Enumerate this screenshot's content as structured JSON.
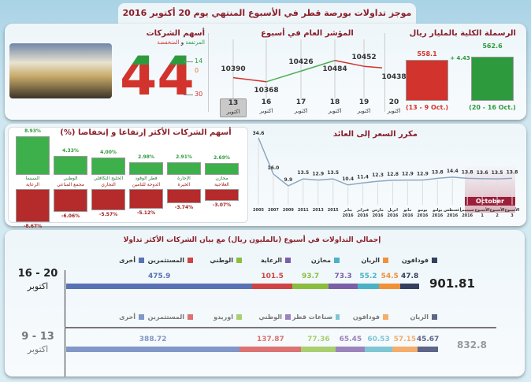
{
  "title": "موجز تداولات بورصة قطر في الأسبوع المنتهي يوم 20 أكتوبر 2016",
  "companies": {
    "title": "أسهم الشركات",
    "subtitle_up": "المرتفعة",
    "subtitle_and": " و ",
    "subtitle_down": "المنخفضة",
    "total": "44",
    "up": "14",
    "unchanged": "0",
    "down": "30"
  },
  "index": {
    "title": "المؤشر العام في أسبوع",
    "days": [
      {
        "day": "13",
        "month": "اكتوبر",
        "value": 10390
      },
      {
        "day": "16",
        "month": "اكتوبر",
        "value": 10368
      },
      {
        "day": "17",
        "month": "اكتوبر",
        "value": 10426
      },
      {
        "day": "18",
        "month": "اكتوبر",
        "value": 10484
      },
      {
        "day": "19",
        "month": "اكتوبر",
        "value": 10452
      },
      {
        "day": "20",
        "month": "اكتوبر",
        "value": 10438
      }
    ],
    "value_labels": [
      "10390",
      "10368",
      "10426",
      "10484",
      "10452",
      "10438"
    ]
  },
  "cap": {
    "title": "الرسملة الكلية بالمليار ريال",
    "prev_value": "558.1",
    "curr_value": "562.6",
    "change": "+ 4.43",
    "prev_label": "(13 - 9 Oct.)",
    "curr_label": "(20 - 16 Oct.)",
    "prev_num": 558.1,
    "curr_num": 562.6,
    "up_color": "#2e9a3e",
    "down_color": "#d2332c"
  },
  "movers": {
    "title": "أسهم الشركات الأكثر إرتفاعا و إنخفاضا (%)",
    "gainers": [
      {
        "name": "السينما",
        "pct": 8.93,
        "label": "8.93%"
      },
      {
        "name": "الوطني",
        "pct": 4.33,
        "label": "4.33%"
      },
      {
        "name": "الخليج التكافلي",
        "pct": 4.0,
        "label": "4.00%"
      },
      {
        "name": "قطر الوقود",
        "pct": 2.98,
        "label": "2.98%"
      },
      {
        "name": "الإجارة",
        "pct": 2.91,
        "label": "2.91%"
      },
      {
        "name": "مخازن",
        "pct": 2.69,
        "label": "2.69%"
      }
    ],
    "losers": [
      {
        "name": "الرعاية",
        "pct": -8.67,
        "label": "-8.67%"
      },
      {
        "name": "مجمع المناعي",
        "pct": -6.06,
        "label": "-6.06%"
      },
      {
        "name": "التجاري",
        "pct": -5.57,
        "label": "-5.57%"
      },
      {
        "name": "الدوحة للتأمين",
        "pct": -5.12,
        "label": "-5.12%"
      },
      {
        "name": "الخيرة",
        "pct": -3.74,
        "label": "-3.74%"
      },
      {
        "name": "العلاجية",
        "pct": -3.07,
        "label": "-3.07%"
      }
    ]
  },
  "chart_data": {
    "type": "line",
    "title": "مكرر السعر إلى العائد",
    "highlight_label": "October",
    "categories": [
      "2005",
      "2007",
      "2009",
      "2011",
      "2013",
      "2015",
      "يناير 2016",
      "فبراير 2016",
      "مارس 2016",
      "ابريل 2016",
      "مايو 2016",
      "يونيو 2016",
      "يوليو 2016",
      "أغسطس 2016",
      "سبتمبر 2016",
      "الأسبوع 1",
      "الأسبوع 2",
      "الأسبوع 3"
    ],
    "values": [
      34.6,
      16.0,
      9.9,
      13.5,
      12.9,
      13.5,
      10.4,
      11.4,
      12.3,
      12.8,
      12.9,
      12.9,
      13.8,
      14.4,
      13.8,
      13.6,
      13.5,
      13.8
    ]
  },
  "trading": {
    "title": "إجمالي التداولات في أسبوع (بالمليون ريال) مع بيان الشركات الأكثر تداولا",
    "weeks": [
      {
        "label1": "16 - 20",
        "label2": "اكتوبر",
        "total": "901.81",
        "items": [
          {
            "name": "فودافون",
            "value": 47.8,
            "color": "#34405e"
          },
          {
            "name": "الريان",
            "value": 54.5,
            "color": "#f0913a"
          },
          {
            "name": "مخازن",
            "value": 55.2,
            "color": "#4bb1c6"
          },
          {
            "name": "الرعاية",
            "value": 73.3,
            "color": "#7b5ea7"
          },
          {
            "name": "الوطني",
            "value": 93.7,
            "color": "#8bbd3f"
          },
          {
            "name": "المستثمرين",
            "value": 101.5,
            "color": "#cf4444"
          },
          {
            "name": "أخرى",
            "value": 475.9,
            "color": "#5872b4"
          }
        ]
      },
      {
        "label1": "9 - 13",
        "label2": "اكتوبر",
        "total": "832.8",
        "items": [
          {
            "name": "الريان",
            "value": 45.67,
            "color": "#5d6686"
          },
          {
            "name": "فودافون",
            "value": 57.15,
            "color": "#f5ad6c"
          },
          {
            "name": "صناعات قطر",
            "value": 60.53,
            "color": "#7fc6d4"
          },
          {
            "name": "الوطني",
            "value": 65.45,
            "color": "#9b84bd"
          },
          {
            "name": "اوريدو",
            "value": 77.36,
            "color": "#a9cf70"
          },
          {
            "name": "المستثمرين",
            "value": 137.87,
            "color": "#dc7272"
          },
          {
            "name": "أخرى",
            "value": 388.72,
            "color": "#8197c8"
          }
        ]
      }
    ]
  }
}
